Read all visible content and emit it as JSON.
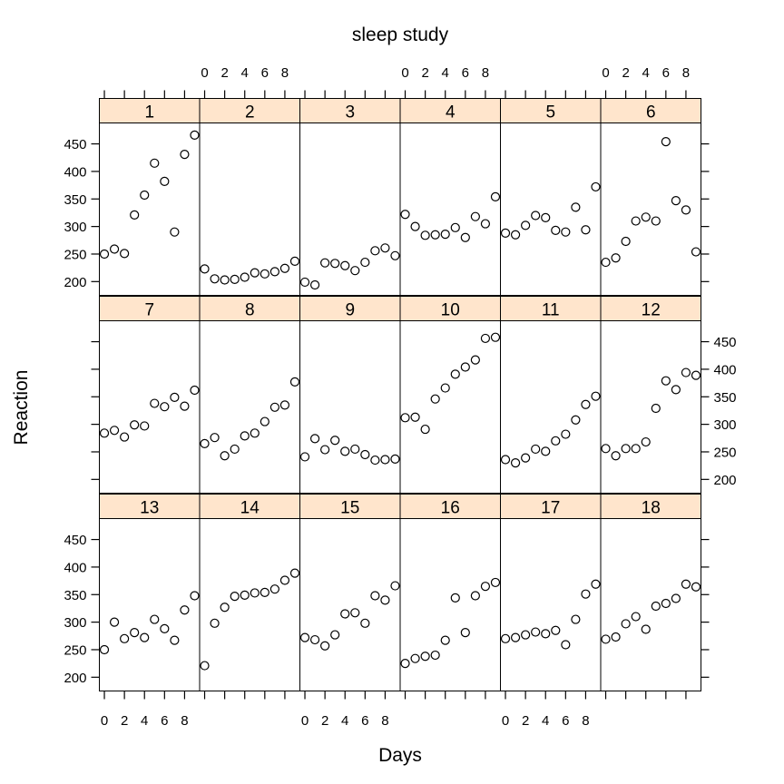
{
  "chart_data": {
    "type": "scatter",
    "title": "sleep study",
    "xlabel": "Days",
    "ylabel": "Reaction",
    "xlim": [
      -0.5,
      9.5
    ],
    "ylim": [
      175,
      488
    ],
    "x_ticks": [
      "0",
      "2",
      "4",
      "6",
      "8"
    ],
    "y_ticks": [
      "200",
      "250",
      "300",
      "350",
      "400",
      "450"
    ],
    "x": [
      0,
      1,
      2,
      3,
      4,
      5,
      6,
      7,
      8,
      9
    ],
    "strip_color": "#ffe5cc",
    "panels": [
      {
        "name": "1",
        "values": [
          250,
          259,
          251,
          321,
          357,
          415,
          382,
          290,
          431,
          466
        ]
      },
      {
        "name": "2",
        "values": [
          223,
          205,
          203,
          204,
          208,
          216,
          214,
          218,
          224,
          237
        ]
      },
      {
        "name": "3",
        "values": [
          199,
          194,
          234,
          233,
          229,
          220,
          235,
          256,
          261,
          247
        ]
      },
      {
        "name": "4",
        "values": [
          322,
          300,
          284,
          285,
          286,
          298,
          280,
          318,
          305,
          354
        ]
      },
      {
        "name": "5",
        "values": [
          288,
          285,
          302,
          320,
          316,
          293,
          290,
          335,
          294,
          372
        ]
      },
      {
        "name": "6",
        "values": [
          235,
          243,
          273,
          310,
          317,
          310,
          454,
          347,
          330,
          254
        ]
      },
      {
        "name": "7",
        "values": [
          284,
          289,
          277,
          299,
          297,
          338,
          332,
          349,
          333,
          362
        ]
      },
      {
        "name": "8",
        "values": [
          265,
          276,
          243,
          255,
          279,
          284,
          305,
          331,
          335,
          377
        ]
      },
      {
        "name": "9",
        "values": [
          241,
          274,
          254,
          271,
          251,
          255,
          245,
          235,
          236,
          237
        ]
      },
      {
        "name": "10",
        "values": [
          312,
          313,
          291,
          346,
          366,
          391,
          404,
          417,
          456,
          458
        ]
      },
      {
        "name": "11",
        "values": [
          236,
          230,
          239,
          255,
          251,
          270,
          282,
          308,
          336,
          351
        ]
      },
      {
        "name": "12",
        "values": [
          256,
          243,
          256,
          256,
          268,
          329,
          379,
          363,
          394,
          389
        ]
      },
      {
        "name": "13",
        "values": [
          250,
          300,
          270,
          281,
          272,
          305,
          288,
          267,
          322,
          348
        ]
      },
      {
        "name": "14",
        "values": [
          221,
          298,
          327,
          347,
          349,
          353,
          354,
          360,
          376,
          389
        ]
      },
      {
        "name": "15",
        "values": [
          272,
          268,
          257,
          277,
          315,
          317,
          298,
          348,
          340,
          366
        ]
      },
      {
        "name": "16",
        "values": [
          225,
          234,
          238,
          240,
          267,
          344,
          281,
          348,
          365,
          372
        ]
      },
      {
        "name": "17",
        "values": [
          270,
          272,
          277,
          282,
          279,
          285,
          259,
          305,
          351,
          369
        ]
      },
      {
        "name": "18",
        "values": [
          269,
          273,
          297,
          310,
          287,
          329,
          334,
          343,
          369,
          364
        ]
      }
    ]
  }
}
